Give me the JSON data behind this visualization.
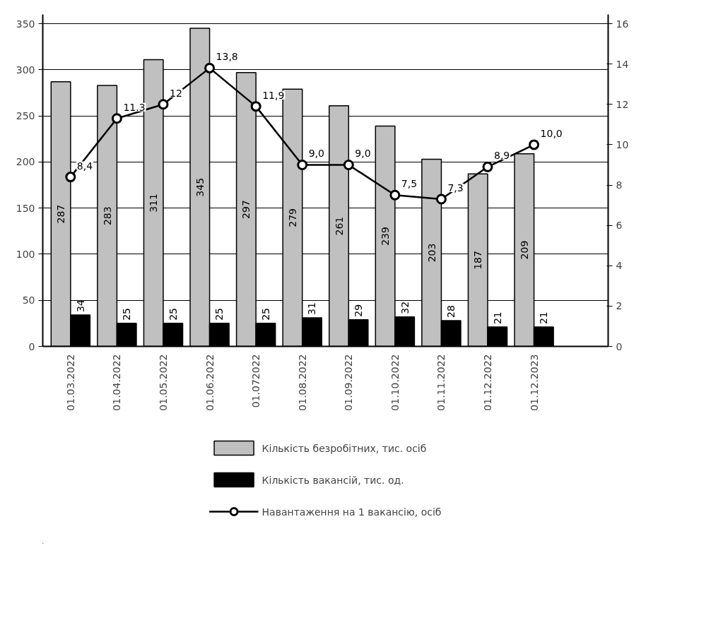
{
  "chart_data": {
    "type": "bar",
    "categories": [
      "01.03.2022",
      "01.04.2022",
      "01.05.2022",
      "01.06.2022",
      "01.072022",
      "01.08.2022",
      "01.09.2022",
      "01.10.2022",
      "01.11.2022",
      "01.12.2022",
      "01.12.2023"
    ],
    "series": [
      {
        "name": "Кількість безробітних, тис. осіб",
        "color": "#c0c0c0",
        "values": [
          287,
          283,
          311,
          345,
          297,
          279,
          261,
          239,
          203,
          187,
          209
        ]
      },
      {
        "name": "Кількість вакансій, тис. од.",
        "color": "#000000",
        "values": [
          34,
          25,
          25,
          25,
          25,
          31,
          29,
          32,
          28,
          21,
          21
        ]
      },
      {
        "name": "Навантаження на 1 вакансію, осіб",
        "type": "line",
        "axis": "y2",
        "color": "#000000",
        "values": [
          8.4,
          11.3,
          12,
          13.8,
          11.9,
          9.0,
          9.0,
          7.5,
          7.3,
          8.9,
          10.0
        ],
        "value_labels": [
          "8,4",
          "11.3",
          "12",
          "13,8",
          "11,9",
          "9,0",
          "9,0",
          "7,5",
          "7,3",
          "8,9",
          "10,0"
        ]
      }
    ],
    "data_labels": true,
    "ylim": [
      0,
      360
    ],
    "yticks": [
      0,
      50,
      100,
      150,
      200,
      250,
      300,
      350
    ],
    "y2lim": [
      0,
      16.457
    ],
    "y2ticks": [
      0,
      2,
      4,
      6,
      8,
      10,
      12,
      14,
      16
    ],
    "grid": "y",
    "legend": "bottom",
    "marker": "circle",
    "line_style": "solid"
  }
}
